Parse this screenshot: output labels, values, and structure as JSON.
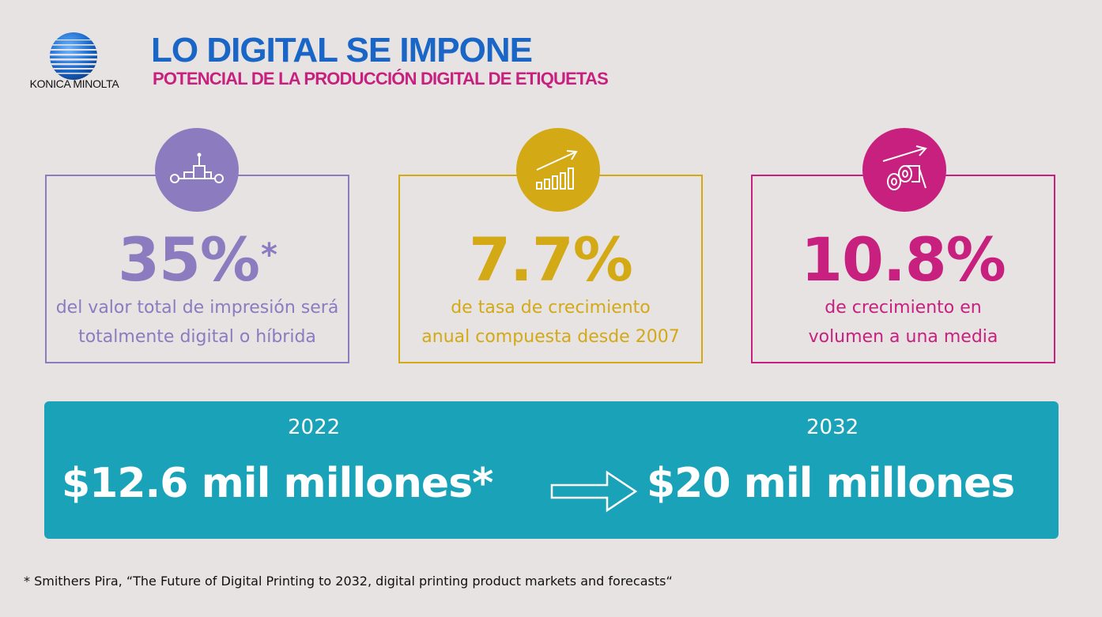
{
  "brand": {
    "logo_text": "KONICA MINOLTA"
  },
  "header": {
    "title": "LO DIGITAL SE IMPONE",
    "subtitle": "POTENCIAL DE LA PRODUCCIÓN DIGITAL DE ETIQUETAS"
  },
  "cards": [
    {
      "value": "35%",
      "asterisk": "*",
      "line1": "del valor total de impresión será",
      "line2": "totalmente digital o híbrida",
      "icon": "printing-press-icon",
      "color": "#8c7bbf"
    },
    {
      "value": "7.7%",
      "line1": "de tasa de crecimiento",
      "line2": "anual compuesta desde 2007",
      "icon": "growth-bars-icon",
      "color": "#d4a916"
    },
    {
      "value": "10.8%",
      "line1": "de crecimiento en",
      "line2": "volumen a una media",
      "icon": "label-rolls-icon",
      "color": "#c8207f"
    }
  ],
  "banner": {
    "year_from": "2022",
    "year_to": "2032",
    "amount_from": "$12.6 mil millones*",
    "amount_to": "$20 mil millones",
    "color": "#1aa3b8"
  },
  "footnote": "* Smithers Pira, “The Future of Digital Printing to 2032, digital printing product markets and forecasts“"
}
